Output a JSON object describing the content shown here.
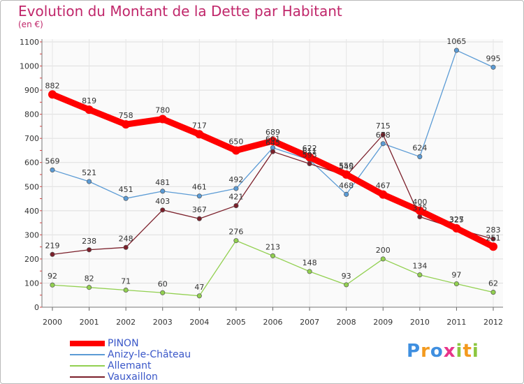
{
  "title": "Evolution du Montant de la Dette par Habitant",
  "subtitle": "(en €)",
  "logo": {
    "letters": [
      {
        "ch": "P",
        "color": "#3f8fe0"
      },
      {
        "ch": "r",
        "color": "#f39a1e"
      },
      {
        "ch": "o",
        "color": "#3f8fe0"
      },
      {
        "ch": "x",
        "color": "#e8348a"
      },
      {
        "ch": "i",
        "color": "#8cc63f"
      },
      {
        "ch": "t",
        "color": "#f39a1e"
      },
      {
        "ch": "i",
        "color": "#8cc63f"
      }
    ]
  },
  "chart_data": {
    "type": "line",
    "x": [
      "2000",
      "2001",
      "2002",
      "2003",
      "2004",
      "2005",
      "2006",
      "2007",
      "2008",
      "2009",
      "2010",
      "2011",
      "2012"
    ],
    "ylim": [
      0,
      1100
    ],
    "yticks": [
      "0",
      "100",
      "200",
      "300",
      "400",
      "500",
      "600",
      "700",
      "800",
      "900",
      "1000",
      "1100"
    ],
    "grid": true,
    "legend_position": "bottom-left",
    "series": [
      {
        "name": "PINON",
        "color": "#ff0000",
        "values": [
          882,
          819,
          758,
          780,
          717,
          650,
          689,
          622,
          550,
          467,
          400,
          327,
          251
        ],
        "labels": [
          "882",
          "819",
          "758",
          "780",
          "717",
          "650",
          "689",
          "622",
          "550",
          "467",
          "400",
          "327",
          "251"
        ]
      },
      {
        "name": "Anizy-le-Château",
        "color": "#5b9bd5",
        "values": [
          569,
          521,
          451,
          481,
          461,
          492,
          661,
          611,
          468,
          678,
          624,
          1065,
          995
        ],
        "labels": [
          "569",
          "521",
          "451",
          "481",
          "461",
          "492",
          "661",
          "611",
          "468",
          "678",
          "624",
          "1065",
          "995"
        ]
      },
      {
        "name": "Allemant",
        "color": "#92d050",
        "values": [
          92,
          82,
          71,
          60,
          47,
          276,
          213,
          148,
          93,
          200,
          134,
          97,
          62
        ],
        "labels": [
          "92",
          "82",
          "71",
          "60",
          "47",
          "276",
          "213",
          "148",
          "93",
          "200",
          "134",
          "97",
          "62"
        ]
      },
      {
        "name": "Vauxaillon",
        "color": "#7b1f2a",
        "values": [
          219,
          238,
          248,
          403,
          367,
          421,
          645,
          595,
          545,
          715,
          375,
          325,
          283
        ],
        "labels": [
          "219",
          "238",
          "248",
          "403",
          "367",
          "421",
          "645",
          "595",
          "545",
          "715",
          "375",
          "325",
          "283"
        ]
      }
    ]
  }
}
